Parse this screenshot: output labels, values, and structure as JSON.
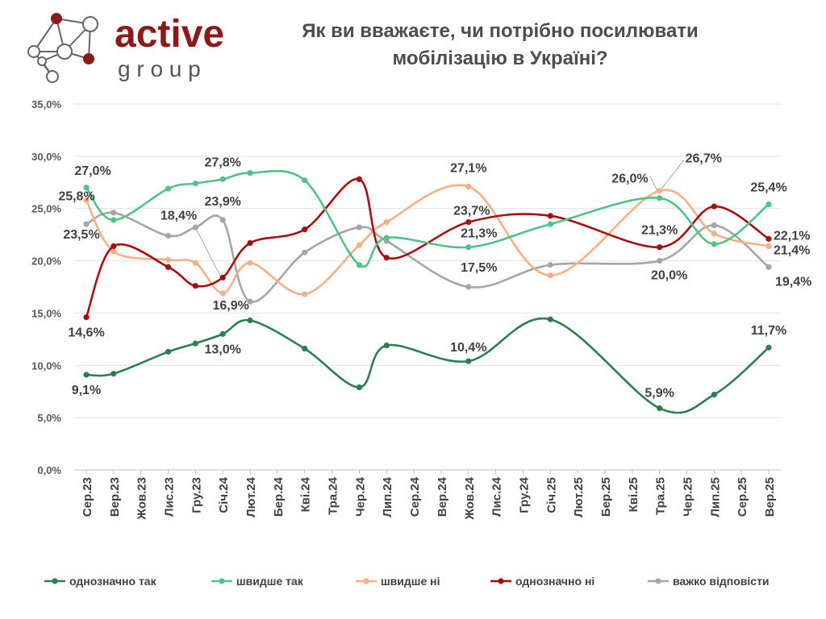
{
  "logo": {
    "word": "active",
    "subword": "g r o u p",
    "brand_color": "#8b1a1a"
  },
  "title": {
    "line1": "Як ви вважаєте, чи потрібно посилювати",
    "line2": "мобілізацію в Україні?"
  },
  "chart_data": {
    "type": "line",
    "title": "Як ви вважаєте, чи потрібно посилювати мобілізацію в Україні?",
    "xlabel": "",
    "ylabel": "",
    "ylim": [
      0,
      35
    ],
    "yticks": [
      0,
      5,
      10,
      15,
      20,
      25,
      30,
      35
    ],
    "ytick_labels": [
      "0,0%",
      "5,0%",
      "10,0%",
      "15,0%",
      "20,0%",
      "25,0%",
      "30,0%",
      "35,0%"
    ],
    "grid": true,
    "legend_position": "bottom",
    "categories": [
      "Сер.23",
      "Вер.23",
      "Жов.23",
      "Лис.23",
      "Гру.23",
      "Січ.24",
      "Лют.24",
      "Бер.24",
      "Кві.24",
      "Тра.24",
      "Чер.24",
      "Лип.24",
      "Сер.24",
      "Вер.24",
      "Жов.24",
      "Лис.24",
      "Гру.24",
      "Січ.25",
      "Лют.25",
      "Бер.25",
      "Кві.25",
      "Тра.25",
      "Чер.25",
      "Лип.25",
      "Сер.25",
      "Вер.25"
    ],
    "series": [
      {
        "name": "однозначно так",
        "color": "#2e7d4f",
        "values": [
          9.1,
          9.2,
          null,
          11.3,
          12.1,
          13.0,
          14.3,
          null,
          11.6,
          null,
          7.9,
          11.9,
          null,
          null,
          10.4,
          null,
          null,
          14.4,
          null,
          null,
          null,
          5.9,
          null,
          7.2,
          null,
          11.7
        ]
      },
      {
        "name": "швидше так",
        "color": "#52c28a",
        "values": [
          27.0,
          23.9,
          null,
          26.9,
          27.4,
          27.8,
          28.4,
          null,
          27.7,
          null,
          19.6,
          22.2,
          null,
          null,
          21.3,
          null,
          null,
          23.5,
          null,
          null,
          null,
          26.0,
          null,
          21.6,
          null,
          25.4
        ]
      },
      {
        "name": "швидше ні",
        "color": "#f4b183",
        "values": [
          25.8,
          20.9,
          null,
          20.1,
          19.8,
          16.9,
          19.8,
          null,
          16.8,
          null,
          21.5,
          23.7,
          null,
          null,
          27.1,
          null,
          null,
          18.6,
          null,
          null,
          null,
          26.7,
          null,
          22.6,
          null,
          21.4
        ]
      },
      {
        "name": "однозначно ні",
        "color": "#a50f0f",
        "values": [
          14.6,
          21.4,
          null,
          19.4,
          17.6,
          18.4,
          21.7,
          null,
          23.0,
          null,
          27.8,
          20.3,
          null,
          null,
          23.7,
          null,
          null,
          24.3,
          null,
          null,
          null,
          21.3,
          null,
          25.2,
          null,
          22.1
        ]
      },
      {
        "name": "важко відповісти",
        "color": "#a6a6a6",
        "values": [
          23.5,
          24.6,
          null,
          22.4,
          23.2,
          23.9,
          16.1,
          null,
          20.8,
          null,
          23.2,
          21.9,
          null,
          null,
          17.5,
          null,
          null,
          19.6,
          null,
          null,
          null,
          20.0,
          null,
          23.4,
          null,
          19.4
        ]
      }
    ],
    "data_labels": [
      {
        "series": 0,
        "index": 0,
        "text": "9,1%"
      },
      {
        "series": 0,
        "index": 5,
        "text": "13,0%"
      },
      {
        "series": 0,
        "index": 14,
        "text": "10,4%"
      },
      {
        "series": 0,
        "index": 21,
        "text": "5,9%"
      },
      {
        "series": 0,
        "index": 25,
        "text": "11,7%"
      },
      {
        "series": 1,
        "index": 0,
        "text": "27,0%"
      },
      {
        "series": 1,
        "index": 5,
        "text": "27,8%"
      },
      {
        "series": 1,
        "index": 14,
        "text": "21,3%"
      },
      {
        "series": 1,
        "index": 21,
        "text": "26,0%"
      },
      {
        "series": 1,
        "index": 25,
        "text": "25,4%"
      },
      {
        "series": 2,
        "index": 0,
        "text": "25,8%"
      },
      {
        "series": 2,
        "index": 5,
        "text": "16,9%"
      },
      {
        "series": 2,
        "index": 14,
        "text": "27,1%"
      },
      {
        "series": 2,
        "index": 21,
        "text": "26,7%"
      },
      {
        "series": 2,
        "index": 25,
        "text": "21,4%"
      },
      {
        "series": 3,
        "index": 0,
        "text": "14,6%"
      },
      {
        "series": 3,
        "index": 5,
        "text": "18,4%"
      },
      {
        "series": 3,
        "index": 14,
        "text": "23,7%"
      },
      {
        "series": 3,
        "index": 21,
        "text": "21,3%"
      },
      {
        "series": 3,
        "index": 25,
        "text": "22,1%"
      },
      {
        "series": 4,
        "index": 0,
        "text": "23,5%"
      },
      {
        "series": 4,
        "index": 5,
        "text": "23,9%"
      },
      {
        "series": 4,
        "index": 14,
        "text": "17,5%"
      },
      {
        "series": 4,
        "index": 21,
        "text": "20,0%"
      },
      {
        "series": 4,
        "index": 25,
        "text": "19,4%"
      }
    ]
  }
}
